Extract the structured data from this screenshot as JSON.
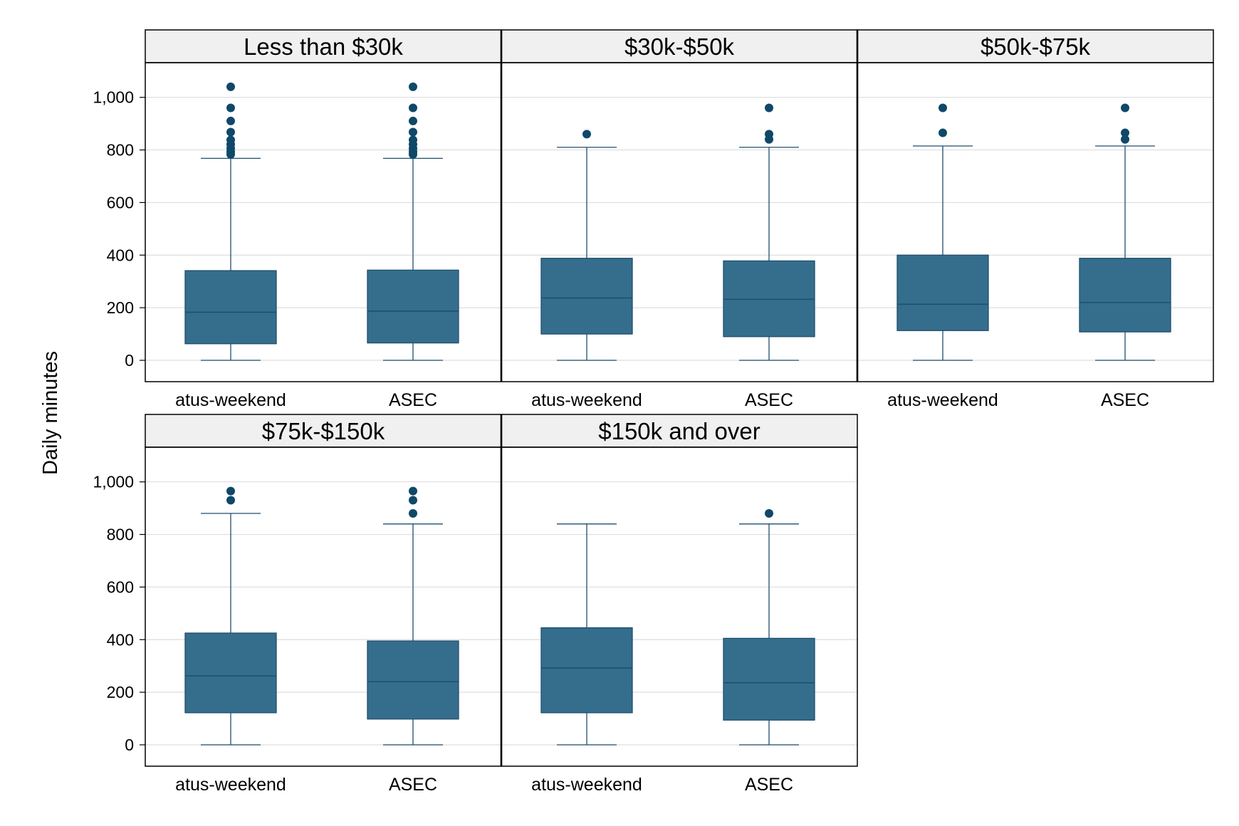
{
  "chart_data": {
    "type": "box",
    "ylabel": "Daily minutes",
    "xlabel": "",
    "ylim": [
      -85,
      1125
    ],
    "yticks": [
      0,
      200,
      400,
      600,
      800,
      1000
    ],
    "ytick_labels": [
      "0",
      "200",
      "400",
      "600",
      "800",
      "1,000"
    ],
    "grid": true,
    "categories": [
      "atus-weekend",
      "ASEC"
    ],
    "colors": {
      "box_fill": "#346e8c",
      "box_edge": "#1f4e6e",
      "outlier": "#0f4868",
      "strip_bg": "#f0f0f0",
      "grid": "#dddddd"
    },
    "panels": [
      {
        "title": "Less than $30k",
        "boxes": [
          {
            "category": "atus-weekend",
            "whisker_low": 0,
            "q1": 63,
            "median": 183,
            "q3": 341,
            "whisker_high": 768,
            "outliers": [
              783,
              793,
              806,
              821,
              838,
              868,
              910,
              960,
              1040
            ]
          },
          {
            "category": "ASEC",
            "whisker_low": 0,
            "q1": 66,
            "median": 187,
            "q3": 343,
            "whisker_high": 768,
            "outliers": [
              783,
              793,
              806,
              821,
              838,
              868,
              910,
              960,
              1040
            ]
          }
        ]
      },
      {
        "title": "$30k-$50k",
        "boxes": [
          {
            "category": "atus-weekend",
            "whisker_low": 0,
            "q1": 100,
            "median": 237,
            "q3": 388,
            "whisker_high": 810,
            "outliers": [
              860
            ]
          },
          {
            "category": "ASEC",
            "whisker_low": 0,
            "q1": 90,
            "median": 232,
            "q3": 378,
            "whisker_high": 810,
            "outliers": [
              840,
              860,
              960
            ]
          }
        ]
      },
      {
        "title": "$50k-$75k",
        "boxes": [
          {
            "category": "atus-weekend",
            "whisker_low": 0,
            "q1": 113,
            "median": 213,
            "q3": 400,
            "whisker_high": 815,
            "outliers": [
              865,
              960
            ]
          },
          {
            "category": "ASEC",
            "whisker_low": 0,
            "q1": 108,
            "median": 220,
            "q3": 388,
            "whisker_high": 815,
            "outliers": [
              840,
              865,
              960
            ]
          }
        ]
      },
      {
        "title": "$75k-$150k",
        "boxes": [
          {
            "category": "atus-weekend",
            "whisker_low": 0,
            "q1": 122,
            "median": 262,
            "q3": 425,
            "whisker_high": 880,
            "outliers": [
              930,
              965
            ]
          },
          {
            "category": "ASEC",
            "whisker_low": 0,
            "q1": 98,
            "median": 240,
            "q3": 395,
            "whisker_high": 840,
            "outliers": [
              880,
              930,
              965
            ]
          }
        ]
      },
      {
        "title": "$150k and over",
        "boxes": [
          {
            "category": "atus-weekend",
            "whisker_low": 0,
            "q1": 122,
            "median": 292,
            "q3": 445,
            "whisker_high": 840,
            "outliers": []
          },
          {
            "category": "ASEC",
            "whisker_low": 0,
            "q1": 94,
            "median": 236,
            "q3": 405,
            "whisker_high": 840,
            "outliers": [
              880
            ]
          }
        ]
      }
    ]
  }
}
